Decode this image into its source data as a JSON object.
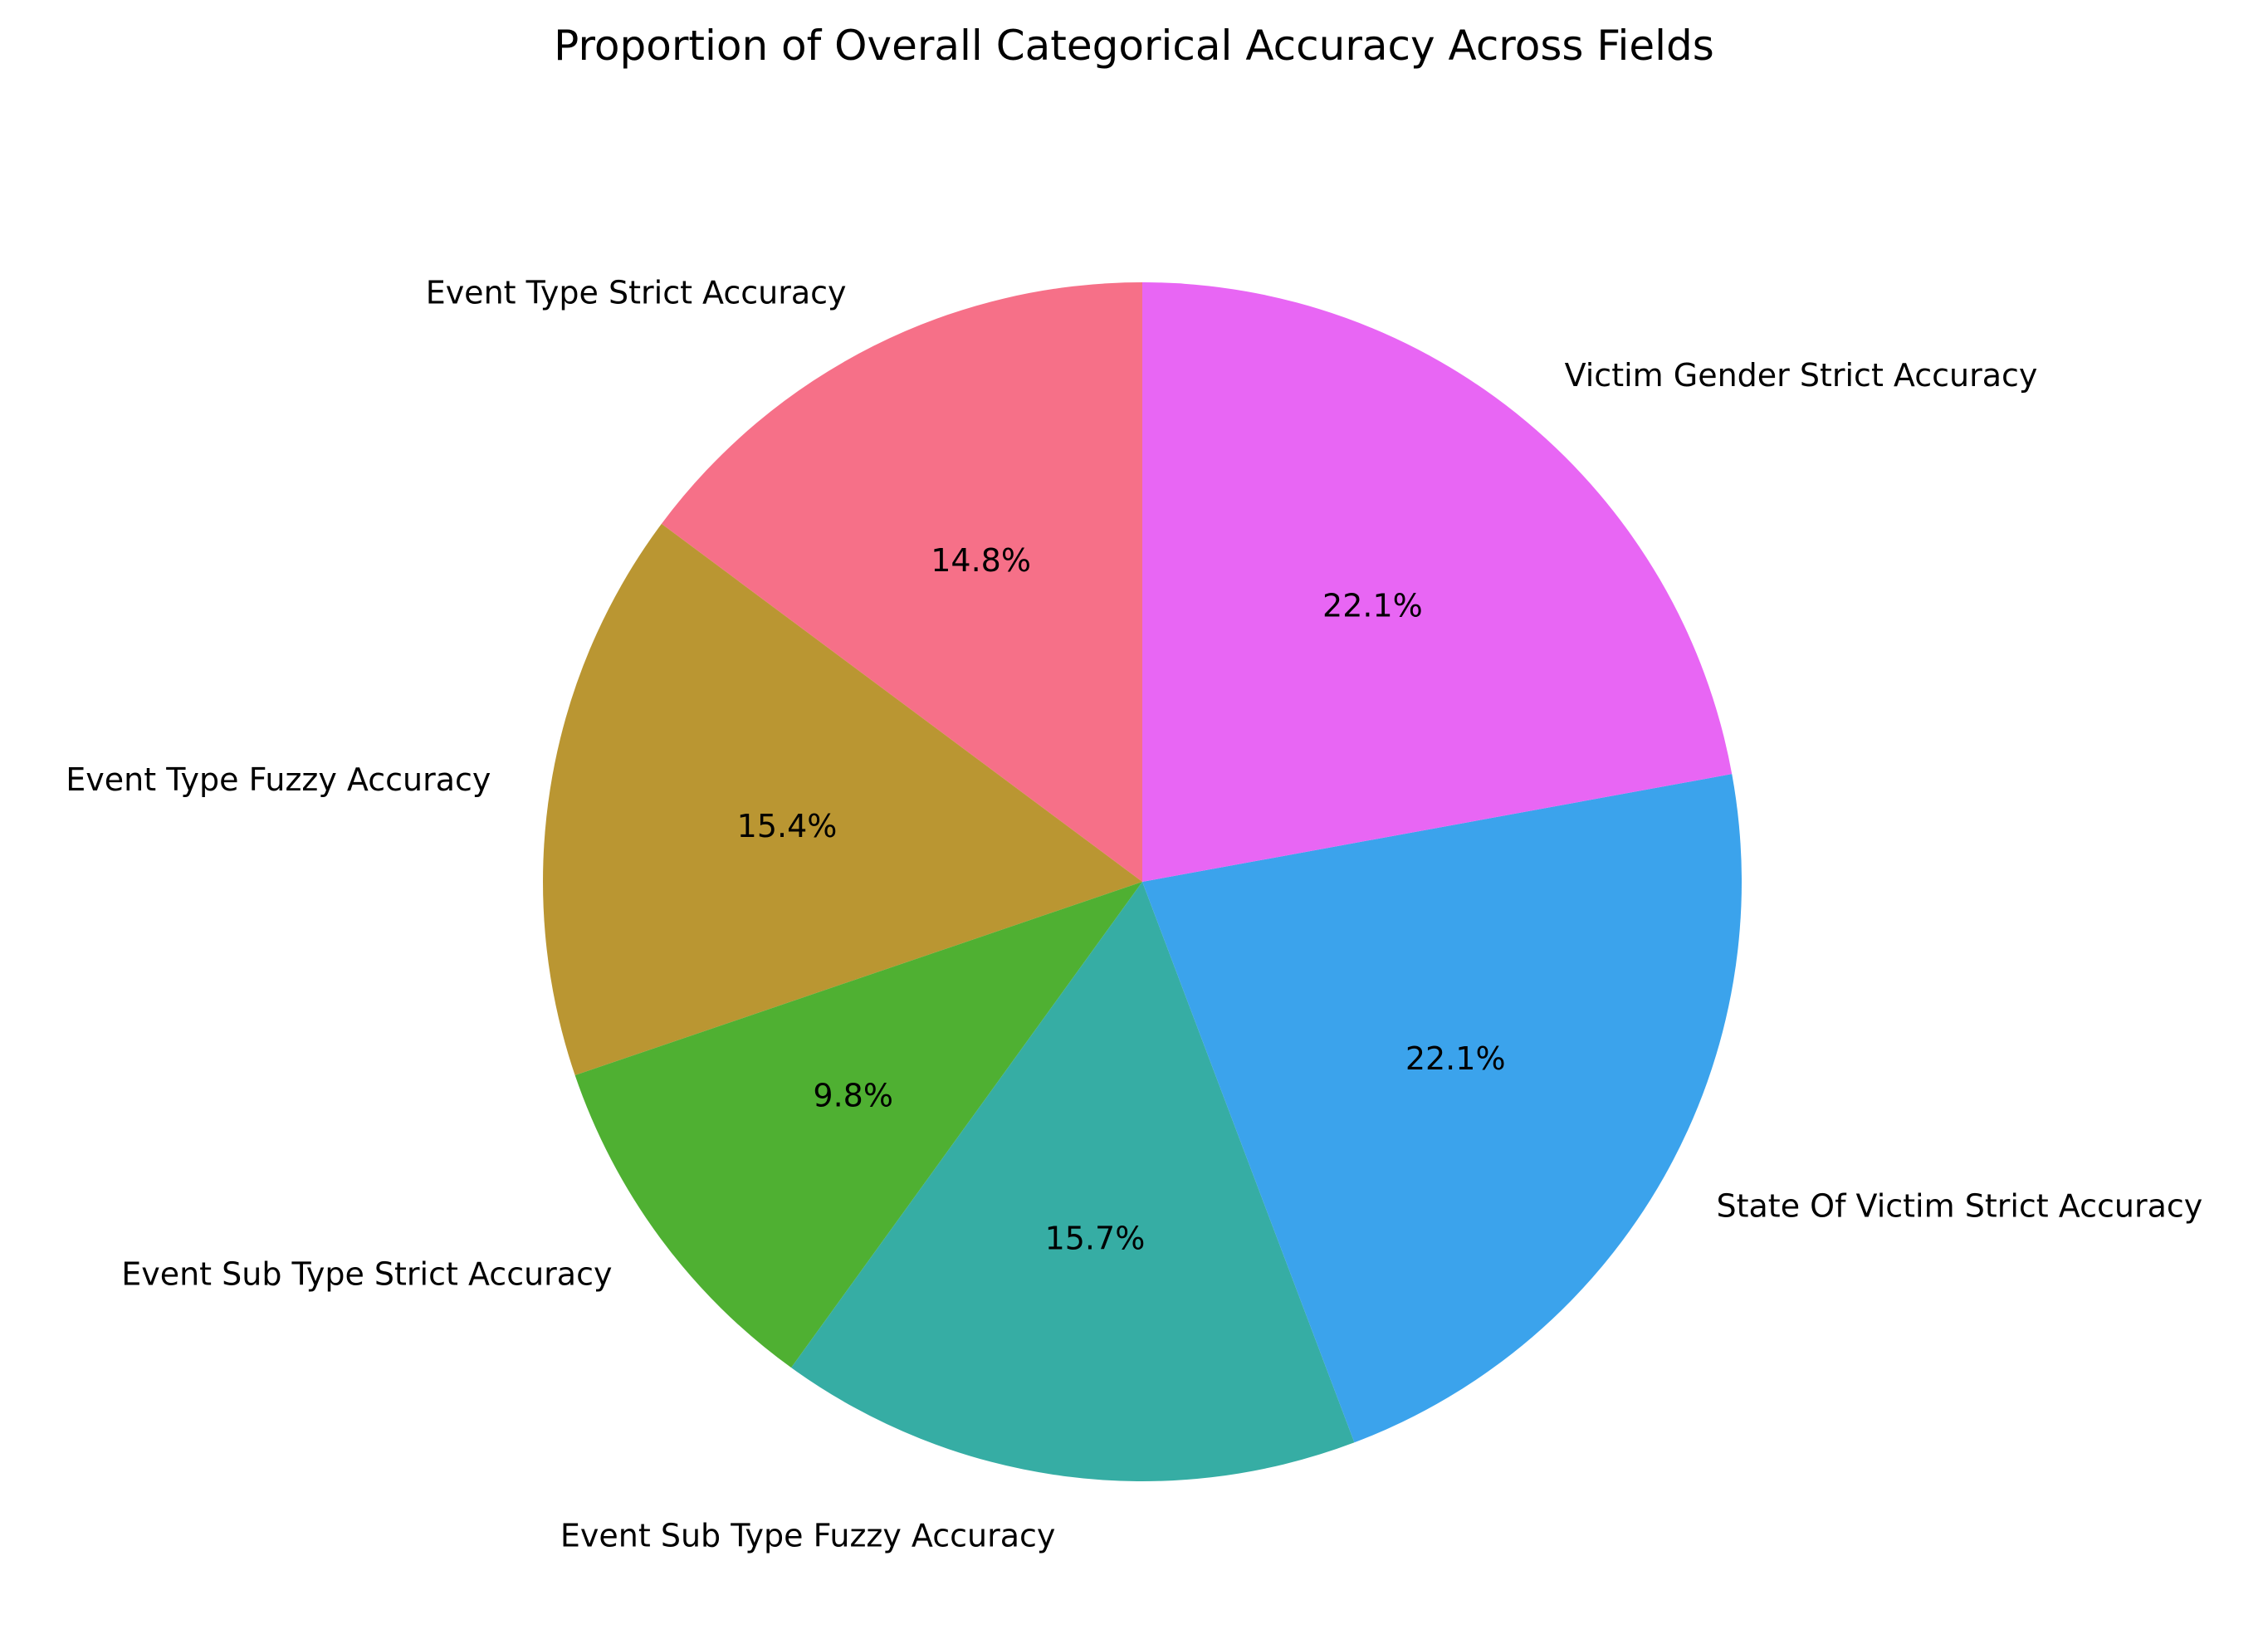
{
  "chart_data": {
    "type": "pie",
    "title": "Proportion of Overall Categorical Accuracy Across Fields",
    "start_angle_deg": 90,
    "direction": "counterclockwise",
    "slices": [
      {
        "label": "Event Type Strict Accuracy",
        "value": 14.8,
        "pct_label": "14.8%",
        "color": "#f67088"
      },
      {
        "label": "Event Type Fuzzy Accuracy",
        "value": 15.4,
        "pct_label": "15.4%",
        "color": "#ba9632"
      },
      {
        "label": "Event Sub Type Strict Accuracy",
        "value": 9.8,
        "pct_label": "9.8%",
        "color": "#4fb032"
      },
      {
        "label": "Event Sub Type Fuzzy Accuracy",
        "value": 15.7,
        "pct_label": "15.7%",
        "color": "#36ada4"
      },
      {
        "label": "State Of Victim Strict Accuracy",
        "value": 22.1,
        "pct_label": "22.1%",
        "color": "#3ba3ec"
      },
      {
        "label": "Victim Gender Strict Accuracy",
        "value": 22.1,
        "pct_label": "22.1%",
        "color": "#e866f4"
      }
    ]
  }
}
